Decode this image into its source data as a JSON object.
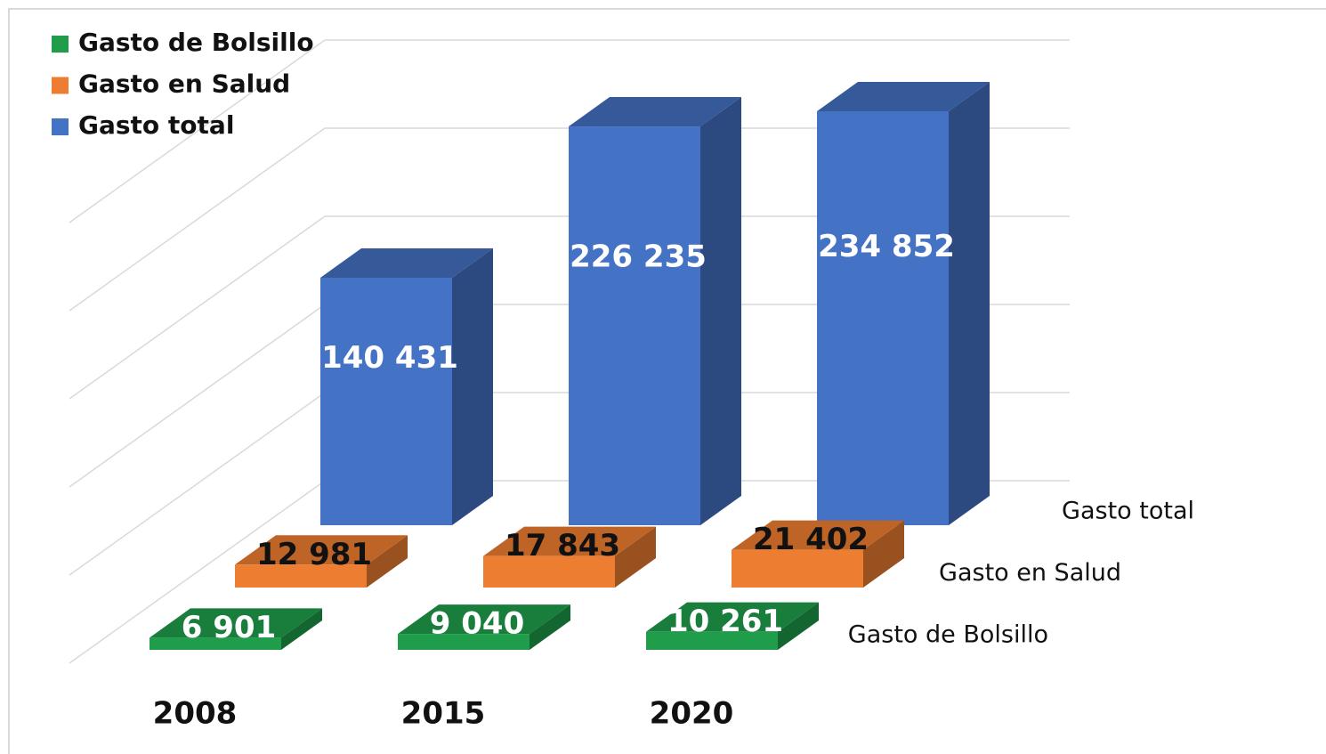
{
  "chart_data": {
    "type": "bar3d",
    "categories": [
      "2008",
      "2015",
      "2020"
    ],
    "series": [
      {
        "name": "Gasto de Bolsillo",
        "color": "#1f9d4b",
        "values": [
          6901,
          9040,
          10261
        ],
        "value_labels": [
          "6 901",
          "9 040",
          "10 261"
        ]
      },
      {
        "name": "Gasto en Salud",
        "color": "#ed7d31",
        "values": [
          12981,
          17843,
          21402
        ],
        "value_labels": [
          "12 981",
          "17 843",
          "21 402"
        ]
      },
      {
        "name": "Gasto total",
        "color": "#4472c4",
        "values": [
          140431,
          226235,
          234852
        ],
        "value_labels": [
          "140 431",
          "226 235",
          "234 852"
        ]
      }
    ],
    "ylim": [
      0,
      250000
    ],
    "yticks": [
      0,
      50000,
      100000,
      150000,
      200000,
      250000
    ],
    "grid": true,
    "legend": "upper left"
  }
}
